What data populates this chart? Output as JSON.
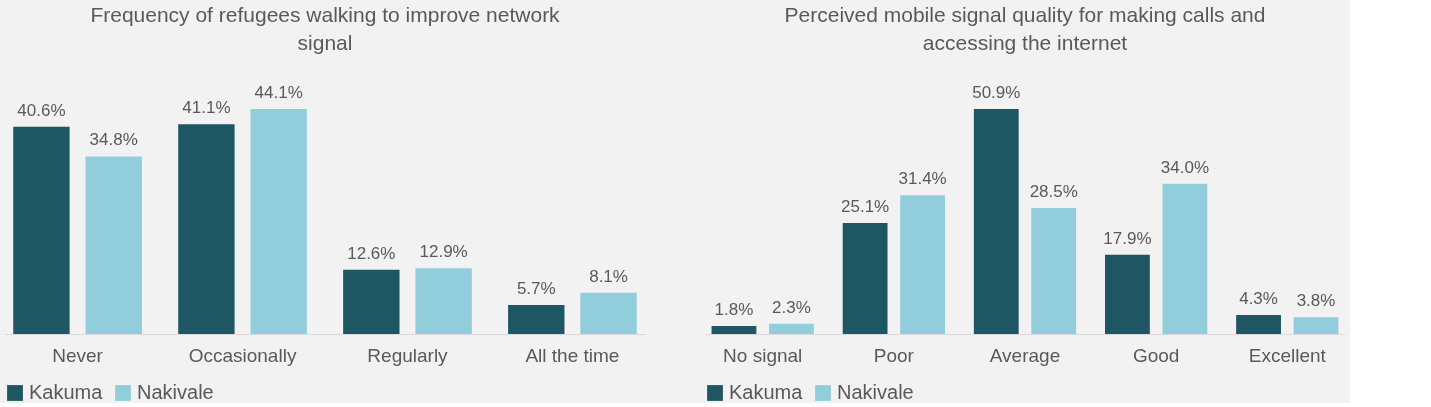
{
  "chart_data": [
    {
      "type": "bar",
      "title": "Frequency of refugees walking to improve network signal",
      "categories": [
        "Never",
        "Occasionally",
        "Regularly",
        "All the time"
      ],
      "series": [
        {
          "name": "Kakuma",
          "color": "#1f5664",
          "values": [
            40.6,
            41.1,
            12.6,
            5.7
          ],
          "value_labels": [
            "40.6%",
            "41.1%",
            "12.6%",
            "5.7%"
          ]
        },
        {
          "name": "Nakivale",
          "color": "#92cddc",
          "values": [
            34.8,
            44.1,
            12.9,
            8.1
          ],
          "value_labels": [
            "34.8%",
            "44.1%",
            "12.9%",
            "8.1%"
          ]
        }
      ],
      "legend": "bottom",
      "grid": false,
      "tick_labels": "x"
    },
    {
      "type": "bar",
      "title": "Perceived mobile signal quality for making calls and accessing the internet",
      "categories": [
        "No signal",
        "Poor",
        "Average",
        "Good",
        "Excellent"
      ],
      "series": [
        {
          "name": "Kakuma",
          "color": "#1f5664",
          "values": [
            1.8,
            25.1,
            50.9,
            17.9,
            4.3
          ],
          "value_labels": [
            "1.8%",
            "25.1%",
            "50.9%",
            "17.9%",
            "4.3%"
          ]
        },
        {
          "name": "Nakivale",
          "color": "#92cddc",
          "values": [
            2.3,
            31.4,
            28.5,
            34.0,
            3.8
          ],
          "value_labels": [
            "2.3%",
            "31.4%",
            "28.5%",
            "34.0%",
            "3.8%"
          ]
        }
      ],
      "legend": "bottom",
      "grid": false,
      "tick_labels": "x"
    }
  ]
}
